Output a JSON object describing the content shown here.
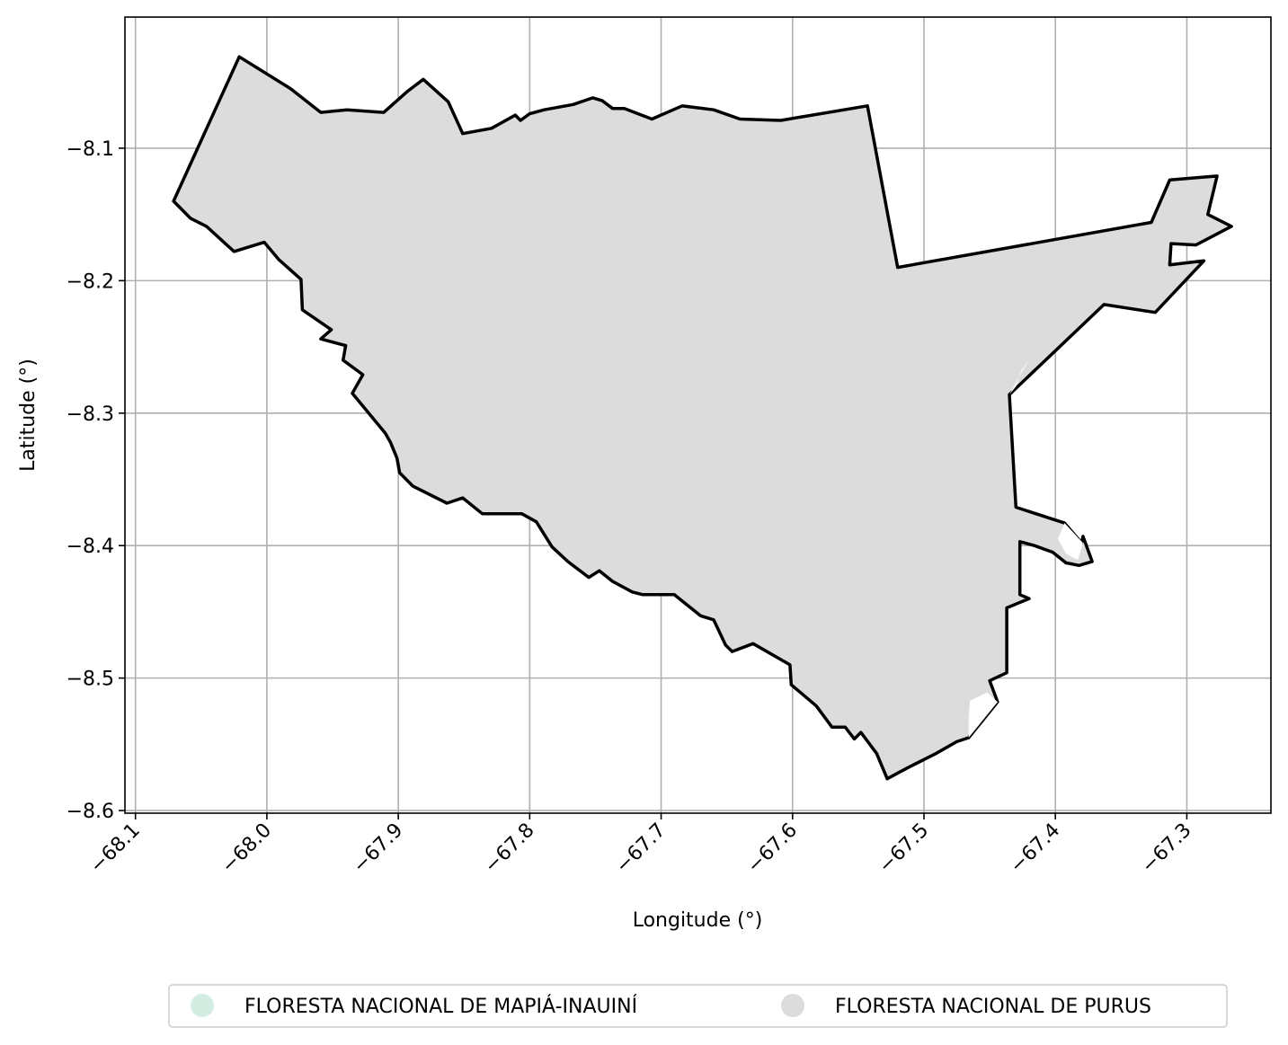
{
  "chart_data": {
    "type": "map",
    "xlabel": "Longitude (°)",
    "ylabel": "Latitude (°)",
    "xlim": [
      -68.108,
      -67.236
    ],
    "ylim": [
      -8.602,
      -8.001
    ],
    "grid": true,
    "x_ticks": [
      {
        "value": -68.1,
        "label": "−68.1"
      },
      {
        "value": -68.0,
        "label": "−68.0"
      },
      {
        "value": -67.9,
        "label": "−67.9"
      },
      {
        "value": -67.8,
        "label": "−67.8"
      },
      {
        "value": -67.7,
        "label": "−67.7"
      },
      {
        "value": -67.6,
        "label": "−67.6"
      },
      {
        "value": -67.5,
        "label": "−67.5"
      },
      {
        "value": -67.4,
        "label": "−67.4"
      },
      {
        "value": -67.3,
        "label": "−67.3"
      }
    ],
    "y_ticks": [
      {
        "value": -8.1,
        "label": "−8.1"
      },
      {
        "value": -8.2,
        "label": "−8.2"
      },
      {
        "value": -8.3,
        "label": "−8.3"
      },
      {
        "value": -8.4,
        "label": "−8.4"
      },
      {
        "value": -8.5,
        "label": "−8.5"
      },
      {
        "value": -8.6,
        "label": "−8.6"
      }
    ],
    "legend": {
      "position": "bottom-center",
      "entries": [
        {
          "label": "FLORESTA NACIONAL DE MAPIÁ-INAUINÍ",
          "color": "#d3ede2"
        },
        {
          "label": "FLORESTA NACIONAL DE PURUS",
          "color": "#dcdcdc"
        }
      ]
    },
    "regions": [
      {
        "name": "FLORESTA NACIONAL DE PURUS",
        "fill": "#dcdcdc",
        "stroke": "#000000",
        "polygon": [
          [
            -68.071,
            -8.14
          ],
          [
            -68.058,
            -8.153
          ],
          [
            -68.046,
            -8.159
          ],
          [
            -68.025,
            -8.178
          ],
          [
            -68.002,
            -8.171
          ],
          [
            -67.991,
            -8.184
          ],
          [
            -67.974,
            -8.199
          ],
          [
            -67.973,
            -8.222
          ],
          [
            -67.951,
            -8.237
          ],
          [
            -67.959,
            -8.244
          ],
          [
            -67.94,
            -8.249
          ],
          [
            -67.942,
            -8.26
          ],
          [
            -67.927,
            -8.271
          ],
          [
            -67.935,
            -8.285
          ],
          [
            -67.91,
            -8.315
          ],
          [
            -67.906,
            -8.322
          ],
          [
            -67.901,
            -8.334
          ],
          [
            -67.899,
            -8.345
          ],
          [
            -67.889,
            -8.355
          ],
          [
            -67.863,
            -8.368
          ],
          [
            -67.851,
            -8.364
          ],
          [
            -67.836,
            -8.376
          ],
          [
            -67.806,
            -8.376
          ],
          [
            -67.795,
            -8.382
          ],
          [
            -67.783,
            -8.401
          ],
          [
            -67.771,
            -8.412
          ],
          [
            -67.755,
            -8.424
          ],
          [
            -67.747,
            -8.419
          ],
          [
            -67.737,
            -8.427
          ],
          [
            -67.722,
            -8.435
          ],
          [
            -67.714,
            -8.437
          ],
          [
            -67.69,
            -8.437
          ],
          [
            -67.67,
            -8.453
          ],
          [
            -67.66,
            -8.456
          ],
          [
            -67.651,
            -8.475
          ],
          [
            -67.646,
            -8.48
          ],
          [
            -67.63,
            -8.474
          ],
          [
            -67.602,
            -8.49
          ],
          [
            -67.601,
            -8.505
          ],
          [
            -67.582,
            -8.521
          ],
          [
            -67.57,
            -8.537
          ],
          [
            -67.56,
            -8.537
          ],
          [
            -67.553,
            -8.546
          ],
          [
            -67.548,
            -8.541
          ],
          [
            -67.536,
            -8.557
          ],
          [
            -67.528,
            -8.576
          ],
          [
            -67.513,
            -8.568
          ],
          [
            -67.491,
            -8.557
          ],
          [
            -67.475,
            -8.548
          ],
          [
            -67.466,
            -8.545
          ],
          [
            -67.444,
            -8.518
          ],
          [
            -67.45,
            -8.502
          ],
          [
            -67.437,
            -8.496
          ],
          [
            -67.437,
            -8.447
          ],
          [
            -67.42,
            -8.44
          ],
          [
            -67.427,
            -8.437
          ],
          [
            -67.427,
            -8.397
          ],
          [
            -67.416,
            -8.4
          ],
          [
            -67.402,
            -8.405
          ],
          [
            -67.392,
            -8.413
          ],
          [
            -67.382,
            -8.415
          ],
          [
            -67.372,
            -8.412
          ],
          [
            -67.379,
            -8.393
          ],
          [
            -67.38,
            -8.398
          ],
          [
            -67.393,
            -8.383
          ],
          [
            -67.43,
            -8.371
          ],
          [
            -67.435,
            -8.286
          ],
          [
            -67.363,
            -8.218
          ],
          [
            -67.324,
            -8.224
          ],
          [
            -67.287,
            -8.185
          ],
          [
            -67.313,
            -8.188
          ],
          [
            -67.312,
            -8.172
          ],
          [
            -67.293,
            -8.173
          ],
          [
            -67.266,
            -8.159
          ],
          [
            -67.284,
            -8.15
          ],
          [
            -67.277,
            -8.121
          ],
          [
            -67.313,
            -8.124
          ],
          [
            -67.327,
            -8.156
          ],
          [
            -67.52,
            -8.19
          ],
          [
            -67.543,
            -8.068
          ],
          [
            -67.609,
            -8.079
          ],
          [
            -67.64,
            -8.078
          ],
          [
            -67.66,
            -8.071
          ],
          [
            -67.684,
            -8.068
          ],
          [
            -67.707,
            -8.078
          ],
          [
            -67.728,
            -8.07
          ],
          [
            -67.737,
            -8.07
          ],
          [
            -67.745,
            -8.064
          ],
          [
            -67.752,
            -8.062
          ],
          [
            -67.767,
            -8.067
          ],
          [
            -67.789,
            -8.071
          ],
          [
            -67.8,
            -8.074
          ],
          [
            -67.807,
            -8.079
          ],
          [
            -67.811,
            -8.075
          ],
          [
            -67.829,
            -8.085
          ],
          [
            -67.851,
            -8.089
          ],
          [
            -67.862,
            -8.065
          ],
          [
            -67.881,
            -8.048
          ],
          [
            -67.893,
            -8.057
          ],
          [
            -67.911,
            -8.073
          ],
          [
            -67.939,
            -8.071
          ],
          [
            -67.959,
            -8.073
          ],
          [
            -67.982,
            -8.055
          ],
          [
            -68.021,
            -8.031
          ],
          [
            -68.071,
            -8.14
          ]
        ]
      },
      {
        "name": "FLORESTA NACIONAL DE MAPIÁ-INAUINÍ",
        "fill": "#ffffff",
        "stroke": "none",
        "polygon": [
          [
            -67.43,
            -8.28
          ],
          [
            -67.426,
            -8.268
          ],
          [
            -67.42,
            -8.259
          ],
          [
            -67.435,
            -8.286
          ]
        ]
      },
      {
        "name": "FLORESTA NACIONAL DE MAPIÁ-INAUINÍ",
        "fill": "#ffffff",
        "stroke": "none",
        "polygon": [
          [
            -67.465,
            -8.517
          ],
          [
            -67.452,
            -8.511
          ],
          [
            -67.444,
            -8.518
          ],
          [
            -67.466,
            -8.545
          ],
          [
            -67.466,
            -8.53
          ]
        ]
      },
      {
        "name": "FLORESTA NACIONAL DE MAPIÁ-INAUINÍ",
        "fill": "#ffffff",
        "stroke": "none",
        "polygon": [
          [
            -67.398,
            -8.395
          ],
          [
            -67.392,
            -8.406
          ],
          [
            -67.383,
            -8.411
          ],
          [
            -67.379,
            -8.398
          ],
          [
            -67.393,
            -8.383
          ]
        ]
      }
    ]
  }
}
